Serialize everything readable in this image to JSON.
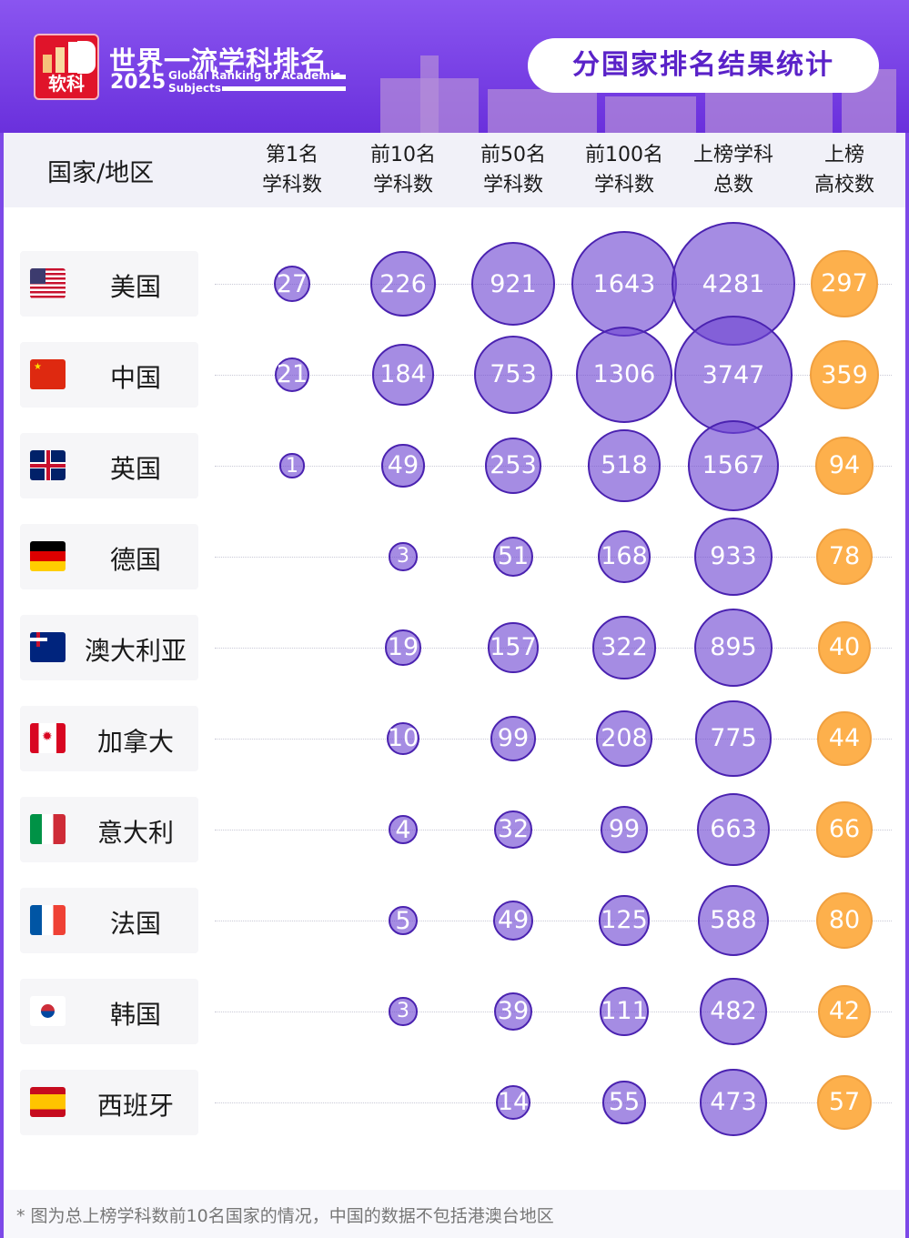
{
  "header": {
    "logo_text": "软科",
    "title": "世界一流学科排名",
    "year": "2025",
    "subtitle_en_line1": "Global Ranking of Academic",
    "subtitle_en_line2": "Subjects",
    "section_title": "分国家排名结果统计"
  },
  "colors": {
    "bubble_purple": "#7a52d8",
    "bubble_border": "#4a22b0",
    "bubble_orange": "#fdb04c",
    "banner": "#7d49e8"
  },
  "chart_data": {
    "type": "table",
    "country_header": "国家/地区",
    "columns": [
      {
        "line1": "第1名",
        "line2": "学科数"
      },
      {
        "line1": "前10名",
        "line2": "学科数"
      },
      {
        "line1": "前50名",
        "line2": "学科数"
      },
      {
        "line1": "前100名",
        "line2": "学科数"
      },
      {
        "line1": "上榜学科",
        "line2": "总数"
      },
      {
        "line1": "上榜",
        "line2": "高校数"
      }
    ],
    "rows": [
      {
        "country": "美国",
        "flag": "us-flag",
        "values": [
          27,
          226,
          921,
          1643,
          4281,
          297
        ]
      },
      {
        "country": "中国",
        "flag": "cn-flag",
        "values": [
          21,
          184,
          753,
          1306,
          3747,
          359
        ]
      },
      {
        "country": "英国",
        "flag": "uk-flag",
        "values": [
          1,
          49,
          253,
          518,
          1567,
          94
        ]
      },
      {
        "country": "德国",
        "flag": "de-flag",
        "values": [
          null,
          3,
          51,
          168,
          933,
          78
        ]
      },
      {
        "country": "澳大利亚",
        "flag": "au-flag",
        "values": [
          null,
          19,
          157,
          322,
          895,
          40
        ]
      },
      {
        "country": "加拿大",
        "flag": "ca-flag",
        "values": [
          null,
          10,
          99,
          208,
          775,
          44
        ]
      },
      {
        "country": "意大利",
        "flag": "it-flag",
        "values": [
          null,
          4,
          32,
          99,
          663,
          66
        ]
      },
      {
        "country": "法国",
        "flag": "fr-flag",
        "values": [
          null,
          5,
          49,
          125,
          588,
          80
        ]
      },
      {
        "country": "韩国",
        "flag": "kr-flag",
        "values": [
          null,
          3,
          39,
          111,
          482,
          42
        ]
      },
      {
        "country": "西班牙",
        "flag": "es-flag",
        "values": [
          null,
          null,
          14,
          55,
          473,
          57
        ]
      }
    ]
  },
  "footnote": "* 图为总上榜学科数前10名国家的情况，中国的数据不包括港澳台地区"
}
